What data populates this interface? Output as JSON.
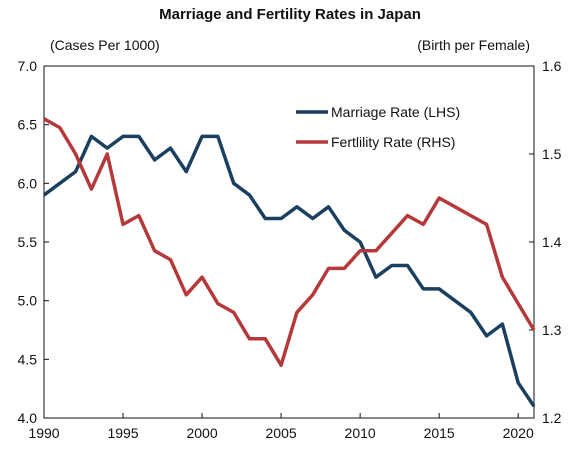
{
  "chart_data": {
    "type": "line",
    "title": "Marriage and Fertility Rates in Japan",
    "left_axis": {
      "unit_label": "(Cases Per 1000)",
      "ylim": [
        4.0,
        7.0
      ],
      "ticks": [
        "7.0",
        "6.5",
        "6.0",
        "5.5",
        "5.0",
        "4.5",
        "4.0"
      ]
    },
    "right_axis": {
      "unit_label": "(Birth per Female)",
      "ylim": [
        1.2,
        1.6
      ],
      "ticks": [
        "1.6",
        "1.5",
        "1.4",
        "1.3",
        "1.2"
      ]
    },
    "x_ticks": [
      "1990",
      "1995",
      "2000",
      "2005",
      "2010",
      "2015",
      "2020"
    ],
    "xlim": [
      1990,
      2021
    ],
    "x": [
      1990,
      1991,
      1992,
      1993,
      1994,
      1995,
      1996,
      1997,
      1998,
      1999,
      2000,
      2001,
      2002,
      2003,
      2004,
      2005,
      2006,
      2007,
      2008,
      2009,
      2010,
      2011,
      2012,
      2013,
      2014,
      2015,
      2016,
      2017,
      2018,
      2019,
      2020,
      2021
    ],
    "grid": false,
    "legend_position": "top-right",
    "series": [
      {
        "name": "Marriage Rate (LHS)",
        "axis": "left",
        "color": "#1b3f5e",
        "values": [
          5.9,
          6.0,
          6.1,
          6.4,
          6.3,
          6.4,
          6.4,
          6.2,
          6.3,
          6.1,
          6.4,
          6.4,
          6.0,
          5.9,
          5.7,
          5.7,
          5.8,
          5.7,
          5.8,
          5.6,
          5.5,
          5.2,
          5.3,
          5.3,
          5.1,
          5.1,
          5.0,
          4.9,
          4.7,
          4.8,
          4.3,
          4.1
        ]
      },
      {
        "name": "Fertlility Rate (RHS)",
        "axis": "right",
        "color": "#b5393b",
        "values": [
          1.54,
          1.53,
          1.5,
          1.46,
          1.5,
          1.42,
          1.43,
          1.39,
          1.38,
          1.34,
          1.36,
          1.33,
          1.32,
          1.29,
          1.29,
          1.26,
          1.32,
          1.34,
          1.37,
          1.37,
          1.39,
          1.39,
          1.41,
          1.43,
          1.42,
          1.45,
          1.44,
          1.43,
          1.42,
          1.36,
          1.33,
          1.3
        ]
      }
    ]
  }
}
